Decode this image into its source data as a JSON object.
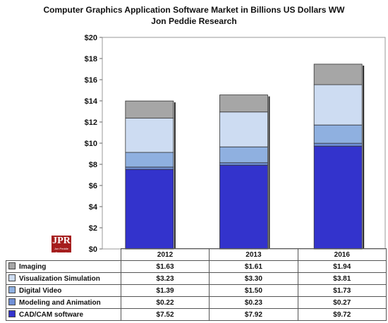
{
  "title_line1": "Computer Graphics Application Software Market in Billions US Dollars WW",
  "title_line2": "Jon Peddie Research",
  "logo": {
    "main": "JPR",
    "sub": "Jon Peddie Research"
  },
  "chart_data": {
    "type": "bar",
    "stacked": true,
    "categories": [
      "2012",
      "2013",
      "2016"
    ],
    "ylim": [
      0,
      20
    ],
    "yticks": [
      0,
      2,
      4,
      6,
      8,
      10,
      12,
      14,
      16,
      18,
      20
    ],
    "ytick_labels": [
      "$0",
      "$2",
      "$4",
      "$6",
      "$8",
      "$10",
      "$12",
      "$14",
      "$16",
      "$18",
      "$20"
    ],
    "grid": false,
    "series": [
      {
        "name": "CAD/CAM software",
        "color": "#3333cc",
        "values": [
          7.52,
          7.92,
          9.72
        ],
        "labels": [
          "$7.52",
          "$7.92",
          "$9.72"
        ]
      },
      {
        "name": "Modeling and Animation",
        "color": "#6f8fd6",
        "values": [
          0.22,
          0.23,
          0.27
        ],
        "labels": [
          "$0.22",
          "$0.23",
          "$0.27"
        ]
      },
      {
        "name": "Digital Video",
        "color": "#8fb0e0",
        "values": [
          1.39,
          1.5,
          1.73
        ],
        "labels": [
          "$1.39",
          "$1.50",
          "$1.73"
        ]
      },
      {
        "name": "Visualization Simulation",
        "color": "#cddcf2",
        "values": [
          3.23,
          3.3,
          3.81
        ],
        "labels": [
          "$3.23",
          "$3.30",
          "$3.81"
        ]
      },
      {
        "name": "Imaging",
        "color": "#a6a6a6",
        "values": [
          1.63,
          1.61,
          1.94
        ],
        "labels": [
          "$1.63",
          "$1.61",
          "$1.94"
        ]
      }
    ]
  }
}
